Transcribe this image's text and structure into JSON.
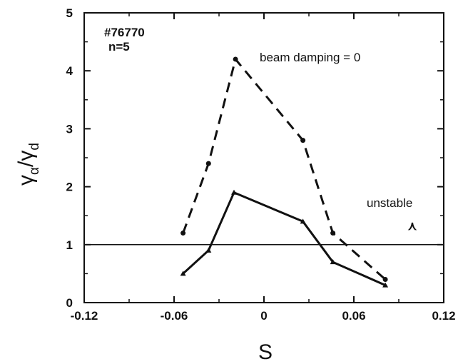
{
  "chart_data": {
    "type": "line",
    "title": "",
    "xlabel": "S",
    "ylabel": "γα/γd",
    "ylabel_main": "γ",
    "ylabel_sub1": "α",
    "ylabel_slash": "/",
    "ylabel_sub2": "d",
    "xlim": [
      -0.12,
      0.12
    ],
    "ylim": [
      0,
      5
    ],
    "xticks": [
      -0.12,
      -0.06,
      0,
      0.06,
      0.12
    ],
    "xtick_labels": [
      "-0.12",
      "-0.06",
      "0",
      "0.06",
      "0.12"
    ],
    "yticks": [
      0,
      1,
      2,
      3,
      4,
      5
    ],
    "ytick_labels": [
      "0",
      "1",
      "2",
      "3",
      "4",
      "5"
    ],
    "grid": false,
    "reference_line": {
      "y": 1
    },
    "series": [
      {
        "name": "beam damping = 0",
        "style": "dashed",
        "marker": "circle",
        "x": [
          -0.054,
          -0.037,
          -0.019,
          0.026,
          0.046,
          0.081
        ],
        "y": [
          1.2,
          2.4,
          4.2,
          2.8,
          1.2,
          0.4
        ]
      },
      {
        "style": "solid",
        "marker": "triangle",
        "x": [
          -0.054,
          -0.037,
          -0.02,
          0.026,
          0.046,
          0.081
        ],
        "y": [
          0.5,
          0.9,
          1.9,
          1.4,
          0.7,
          0.3
        ]
      }
    ],
    "annotations": {
      "shot": "#76770",
      "mode": "n=5",
      "unstable": "unstable",
      "unstable_arrow": "⋏"
    }
  }
}
